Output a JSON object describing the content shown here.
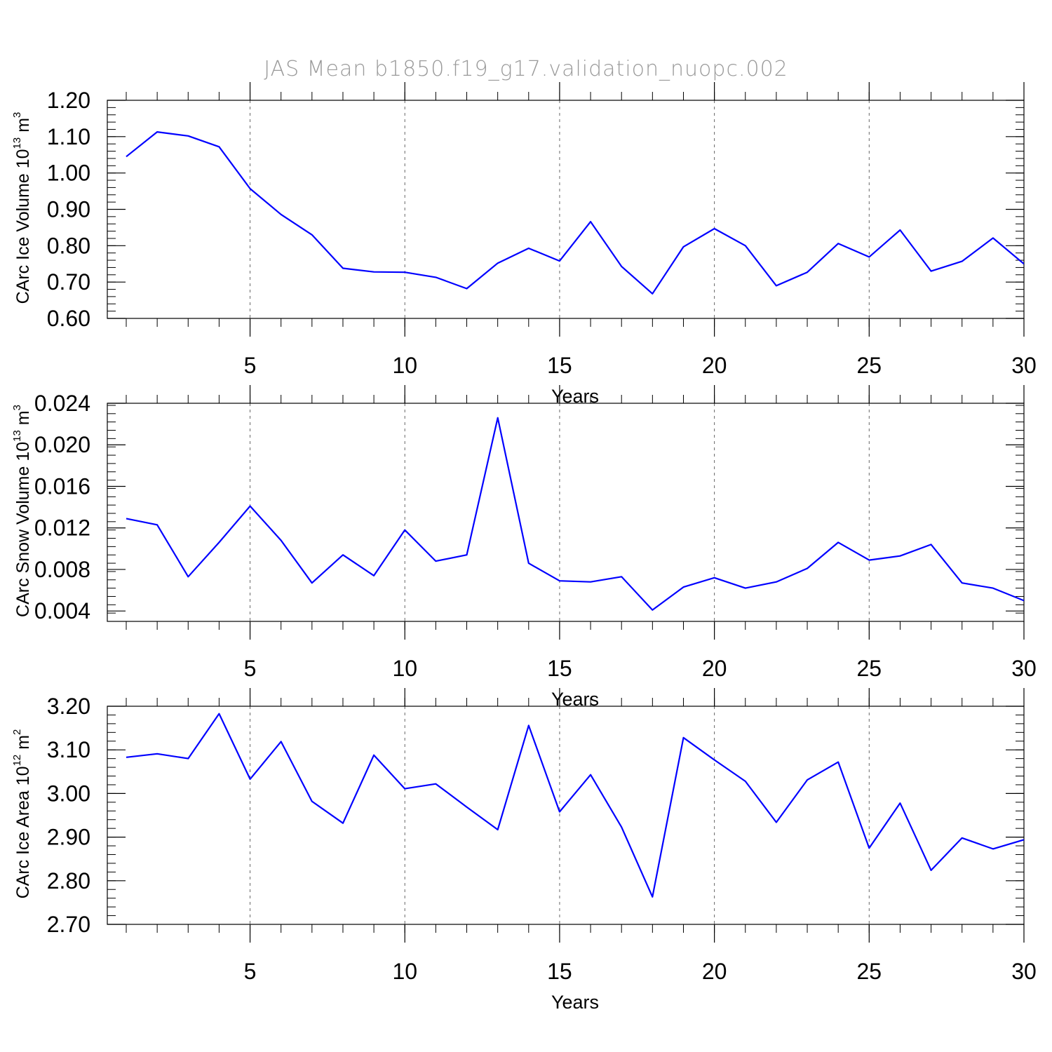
{
  "title": "JAS Mean b1850.f19_g17.validation_nuopc.002",
  "line_color": "#0000ff",
  "chart_data": [
    {
      "type": "line",
      "xlabel": "Years",
      "ylabel_main": "CArc Ice Volume 10",
      "ylabel_exp": "13",
      "ylabel_unit": " m",
      "ylabel_unit_exp": "3",
      "xlim": [
        1,
        30
      ],
      "ylim": [
        0.6,
        1.2
      ],
      "x_ticks": [
        5,
        10,
        15,
        20,
        25,
        30
      ],
      "x_tick_labels": [
        "5",
        "10",
        "15",
        "20",
        "25",
        "30"
      ],
      "y_ticks": [
        0.6,
        0.7,
        0.8,
        0.9,
        1.0,
        1.1,
        1.2
      ],
      "y_tick_labels": [
        "0.60",
        "0.70",
        "0.80",
        "0.90",
        "1.00",
        "1.10",
        "1.20"
      ],
      "grid": "vertical dashed at major x ticks",
      "x": [
        1,
        2,
        3,
        4,
        5,
        6,
        7,
        8,
        9,
        10,
        11,
        12,
        13,
        14,
        15,
        16,
        17,
        18,
        19,
        20,
        21,
        22,
        23,
        24,
        25,
        26,
        27,
        28,
        29,
        30
      ],
      "series": [
        {
          "values": [
            1.045,
            1.113,
            1.102,
            1.072,
            0.957,
            0.886,
            0.83,
            0.738,
            0.728,
            0.727,
            0.713,
            0.682,
            0.752,
            0.793,
            0.758,
            0.866,
            0.743,
            0.668,
            0.797,
            0.847,
            0.8,
            0.69,
            0.727,
            0.806,
            0.769,
            0.843,
            0.73,
            0.757,
            0.821,
            0.75
          ]
        }
      ]
    },
    {
      "type": "line",
      "xlabel": "Years",
      "ylabel_main": "CArc Snow Volume 10",
      "ylabel_exp": "13",
      "ylabel_unit": " m",
      "ylabel_unit_exp": "3",
      "xlim": [
        1,
        30
      ],
      "ylim": [
        0.003,
        0.024
      ],
      "x_ticks": [
        5,
        10,
        15,
        20,
        25,
        30
      ],
      "x_tick_labels": [
        "5",
        "10",
        "15",
        "20",
        "25",
        "30"
      ],
      "y_ticks": [
        0.004,
        0.008,
        0.012,
        0.016,
        0.02,
        0.024
      ],
      "y_tick_labels": [
        "0.004",
        "0.008",
        "0.012",
        "0.016",
        "0.020",
        "0.024"
      ],
      "grid": "vertical dashed at major x ticks",
      "x": [
        1,
        2,
        3,
        4,
        5,
        6,
        7,
        8,
        9,
        10,
        11,
        12,
        13,
        14,
        15,
        16,
        17,
        18,
        19,
        20,
        21,
        22,
        23,
        24,
        25,
        26,
        27,
        28,
        29,
        30
      ],
      "series": [
        {
          "values": [
            0.0129,
            0.0123,
            0.0073,
            0.0106,
            0.0141,
            0.0108,
            0.0067,
            0.0094,
            0.0074,
            0.0118,
            0.0088,
            0.0094,
            0.0226,
            0.0086,
            0.0069,
            0.0068,
            0.0073,
            0.0041,
            0.0063,
            0.0072,
            0.0062,
            0.0068,
            0.0081,
            0.0106,
            0.0089,
            0.0093,
            0.0104,
            0.0067,
            0.0062,
            0.005
          ]
        }
      ]
    },
    {
      "type": "line",
      "xlabel": "Years",
      "ylabel_main": "CArc Ice Area 10",
      "ylabel_exp": "12",
      "ylabel_unit": " m",
      "ylabel_unit_exp": "2",
      "xlim": [
        1,
        30
      ],
      "ylim": [
        2.7,
        3.2
      ],
      "x_ticks": [
        5,
        10,
        15,
        20,
        25,
        30
      ],
      "x_tick_labels": [
        "5",
        "10",
        "15",
        "20",
        "25",
        "30"
      ],
      "y_ticks": [
        2.7,
        2.8,
        2.9,
        3.0,
        3.1,
        3.2
      ],
      "y_tick_labels": [
        "2.70",
        "2.80",
        "2.90",
        "3.00",
        "3.10",
        "3.20"
      ],
      "grid": "vertical dashed at major x ticks",
      "x": [
        1,
        2,
        3,
        4,
        5,
        6,
        7,
        8,
        9,
        10,
        11,
        12,
        13,
        14,
        15,
        16,
        17,
        18,
        19,
        20,
        21,
        22,
        23,
        24,
        25,
        26,
        27,
        28,
        29,
        30
      ],
      "series": [
        {
          "values": [
            3.083,
            3.091,
            3.08,
            3.183,
            3.033,
            3.119,
            2.982,
            2.932,
            3.088,
            3.011,
            3.022,
            2.969,
            2.917,
            3.156,
            2.958,
            3.043,
            2.923,
            2.763,
            3.128,
            3.077,
            3.028,
            2.934,
            3.031,
            3.072,
            2.875,
            2.978,
            2.824,
            2.898,
            2.873,
            2.894
          ]
        }
      ]
    }
  ]
}
